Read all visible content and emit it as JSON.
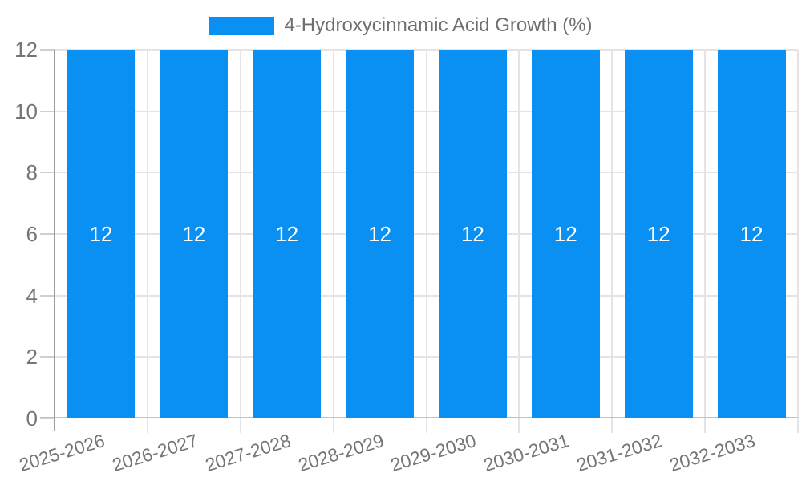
{
  "chart_data": {
    "type": "bar",
    "title": "4-Hydroxycinnamic Acid Growth (%)",
    "legend_position": "top",
    "categories": [
      "2025-2026",
      "2026-2027",
      "2027-2028",
      "2028-2029",
      "2029-2030",
      "2030-2031",
      "2031-2032",
      "2032-2033"
    ],
    "series": [
      {
        "name": "4-Hydroxycinnamic Acid Growth (%)",
        "values": [
          12,
          12,
          12,
          12,
          12,
          12,
          12,
          12
        ]
      }
    ],
    "bar_value_labels": [
      "12",
      "12",
      "12",
      "12",
      "12",
      "12",
      "12",
      "12"
    ],
    "xlabel": "",
    "ylabel": "",
    "ylim": [
      0,
      12
    ],
    "yticks": [
      0,
      2,
      4,
      6,
      8,
      10,
      12
    ],
    "grid": true,
    "x_tick_rotation_deg": -17,
    "colors": {
      "bar": "#0a90f2",
      "bar_value_label": "#ffffff",
      "legend_text": "#6f6f6f",
      "axis_tick_text": "#757575",
      "gridline": "#e4e4e4",
      "outer_tick": "#cfcfcf",
      "y_axis_line": "#9e9e9e",
      "x_baseline": "#c2c2c2",
      "background": "#ffffff"
    }
  }
}
